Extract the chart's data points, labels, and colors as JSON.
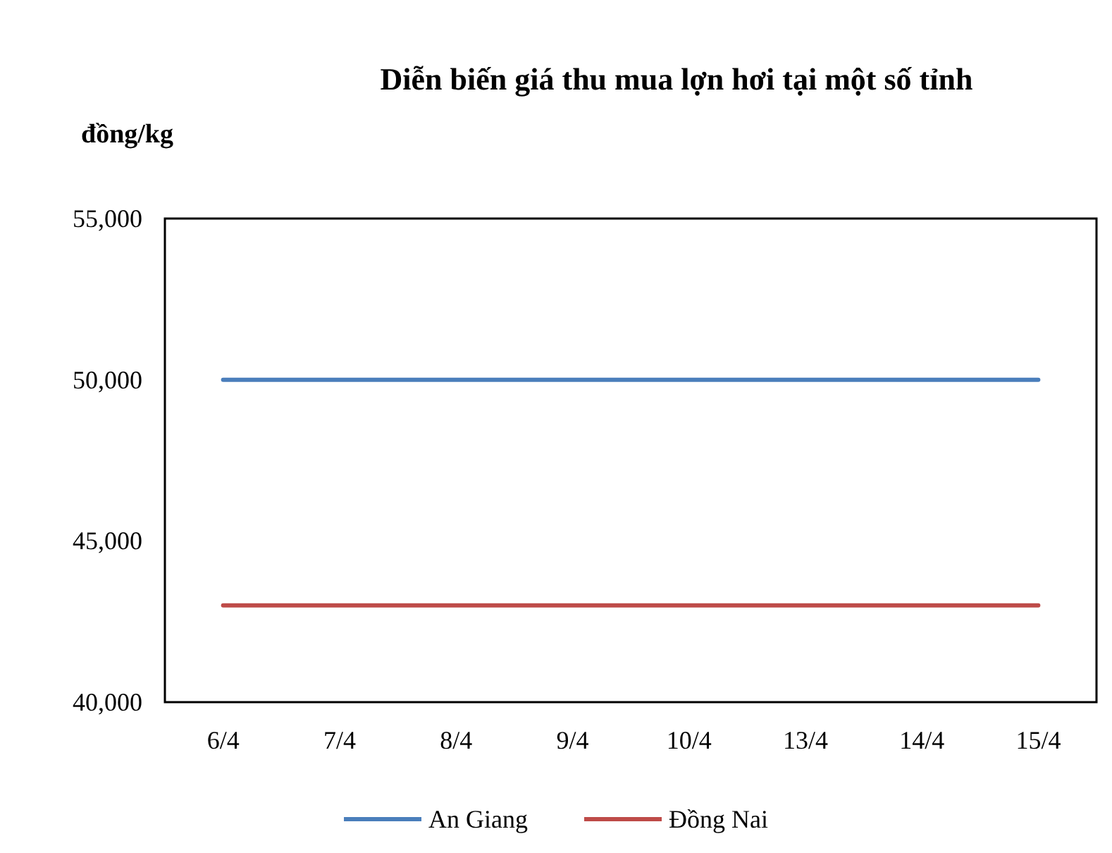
{
  "chart_data": {
    "type": "line",
    "title": "Diễn biến giá thu mua lợn hơi tại một số tỉnh",
    "ylabel": "đồng/kg",
    "categories": [
      "6/4",
      "7/4",
      "8/4",
      "9/4",
      "10/4",
      "13/4",
      "14/4",
      "15/4"
    ],
    "series": [
      {
        "name": "An Giang",
        "color": "#4a7ebb",
        "values": [
          50000,
          50000,
          50000,
          50000,
          50000,
          50000,
          50000,
          50000
        ]
      },
      {
        "name": "Đồng Nai",
        "color": "#be4b48",
        "values": [
          43000,
          43000,
          43000,
          43000,
          43000,
          43000,
          43000,
          43000
        ]
      }
    ],
    "ylim": [
      40000,
      55000
    ],
    "yticks": [
      {
        "value": 40000,
        "label": "40,000"
      },
      {
        "value": 45000,
        "label": "45,000"
      },
      {
        "value": 50000,
        "label": "50,000"
      },
      {
        "value": 55000,
        "label": "55,000"
      }
    ],
    "grid": false,
    "legend": "bottom",
    "marker": "none",
    "line_style": "solid"
  }
}
